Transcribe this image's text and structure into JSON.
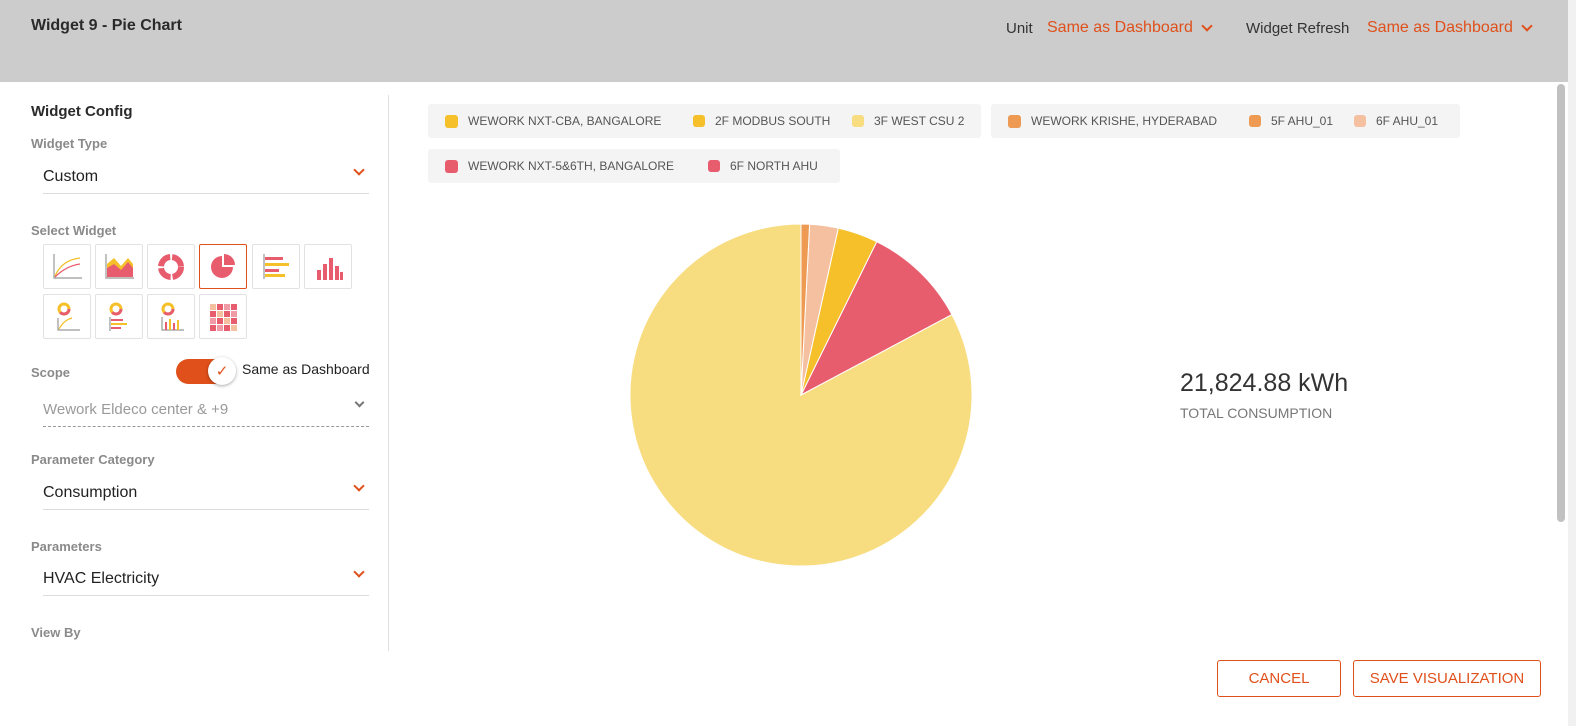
{
  "header": {
    "title": "Widget 9 - Pie Chart",
    "unit_label": "Unit",
    "unit_value": "Same as Dashboard",
    "refresh_label": "Widget Refresh",
    "refresh_value": "Same as Dashboard"
  },
  "config": {
    "section_title": "Widget Config",
    "widget_type_label": "Widget Type",
    "widget_type_value": "Custom",
    "select_widget_label": "Select Widget",
    "widget_icons": [
      "line-chart-icon",
      "area-chart-icon",
      "donut-chart-icon",
      "pie-chart-icon",
      "horizontal-bar-chart-icon",
      "column-chart-icon",
      "donut-line-combo-icon",
      "donut-hbar-combo-icon",
      "donut-column-combo-icon",
      "heatmap-icon"
    ],
    "selected_widget": "pie-chart-icon",
    "scope_label": "Scope",
    "scope_toggle_on": true,
    "scope_toggle_label": "Same as Dashboard",
    "scope_value": "Wework Eldeco center & +9",
    "parameter_category_label": "Parameter Category",
    "parameter_category_value": "Consumption",
    "parameters_label": "Parameters",
    "parameters_value": "HVAC Electricity",
    "view_by_label": "View By"
  },
  "legend": {
    "groups": [
      {
        "items": [
          {
            "label": "WEWORK NXT-CBA, BANGALORE",
            "color": "#f5c02a",
            "parent": true
          },
          {
            "label": "2F MODBUS SOUTH",
            "color": "#f5c02a",
            "parent": false
          },
          {
            "label": "3F WEST CSU 2",
            "color": "#f8dc80",
            "parent": false
          }
        ]
      },
      {
        "items": [
          {
            "label": "WEWORK KRISHE, HYDERABAD",
            "color": "#ee9a52",
            "parent": true
          },
          {
            "label": "5F AHU_01",
            "color": "#ee9a52",
            "parent": false
          },
          {
            "label": "6F AHU_01",
            "color": "#f5c0a0",
            "parent": false
          }
        ]
      },
      {
        "items": [
          {
            "label": "WEWORK NXT-5&6TH, BANGALORE",
            "color": "#e85d6e",
            "parent": true
          },
          {
            "label": "6F NORTH AHU",
            "color": "#e85d6e",
            "parent": false
          }
        ]
      }
    ]
  },
  "chart_data": {
    "type": "pie",
    "title": "",
    "total_value": "21,824.88 kWh",
    "total_label": "TOTAL CONSUMPTION",
    "slices": [
      {
        "label": "3F WEST CSU 2",
        "value": 0.828,
        "color": "#f8dc80"
      },
      {
        "label": "6F NORTH AHU",
        "value": 0.099,
        "color": "#e85d6e"
      },
      {
        "label": "2F MODBUS SOUTH",
        "value": 0.038,
        "color": "#f5c02a"
      },
      {
        "label": "6F AHU_01",
        "value": 0.027,
        "color": "#f5c0a0"
      },
      {
        "label": "5F AHU_01",
        "value": 0.008,
        "color": "#ee9a52"
      }
    ]
  },
  "buttons": {
    "cancel": "CANCEL",
    "save": "SAVE VISUALIZATION"
  }
}
